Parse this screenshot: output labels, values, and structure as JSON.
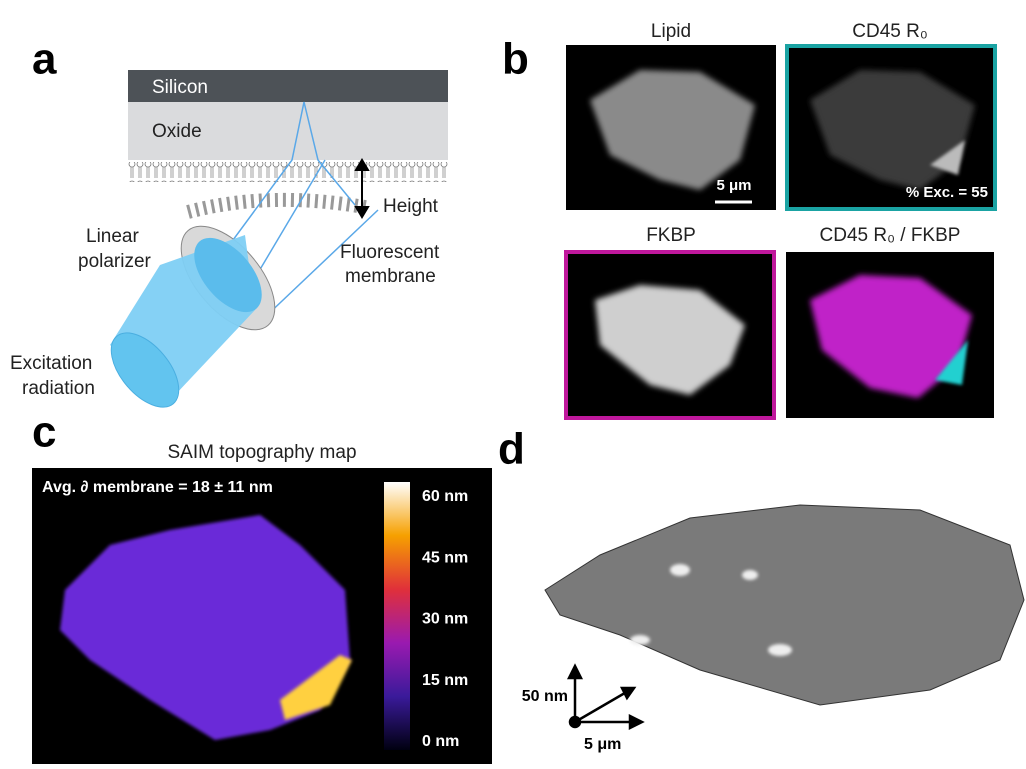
{
  "panel_a": {
    "label": "a",
    "silicon": "Silicon",
    "oxide": "Oxide",
    "height": "Height",
    "polarizer": [
      "Linear",
      "polarizer"
    ],
    "membrane": [
      "Fluorescent",
      "membrane"
    ],
    "excitation": [
      "Excitation",
      "radiation"
    ]
  },
  "panel_b": {
    "label": "b",
    "titles": [
      "Lipid",
      "CD45 R₀",
      "FKBP",
      "CD45 R₀ / FKBP"
    ],
    "scale_bar": "5 μm",
    "exclusion": "% Exc. = 55"
  },
  "panel_c": {
    "label": "c",
    "title": "SAIM topography map",
    "annotation": "Avg. ∂ membrane = 18 ± 11 nm",
    "colorbar_labels": [
      "60 nm",
      "45 nm",
      "30 nm",
      "15 nm",
      "0 nm"
    ]
  },
  "panel_d": {
    "label": "d",
    "z_scale": "50 nm",
    "xy_scale": "5 μm"
  }
}
